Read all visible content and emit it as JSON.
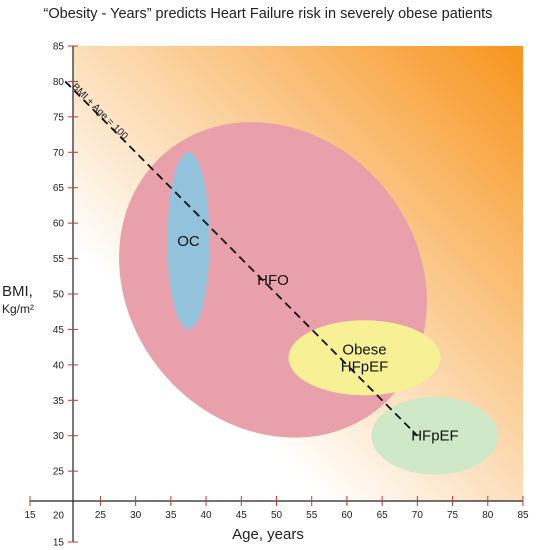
{
  "chart_data": {
    "type": "scatter",
    "title": "“Obesity - Years” predicts Heart Failure risk in severely obese patients",
    "xlabel": "Age, years",
    "ylabel": "BMI,",
    "ylabel_unit": "Kg/m²",
    "xlim": [
      15,
      85
    ],
    "ylim": [
      15,
      85
    ],
    "x_ticks": [
      15,
      20,
      25,
      30,
      35,
      40,
      45,
      50,
      55,
      60,
      65,
      70,
      75,
      80,
      85
    ],
    "y_ticks": [
      15,
      20,
      25,
      30,
      35,
      40,
      45,
      50,
      55,
      60,
      65,
      70,
      75,
      80,
      85
    ],
    "grid": false,
    "background_gradient": {
      "from": "#ffffff",
      "to": "#f7941d",
      "direction": "bottom-left to top-right"
    },
    "reference_line": {
      "label": "BMI + Age = 100",
      "x": [
        20,
        70
      ],
      "y": [
        80,
        30
      ],
      "style": "dashed"
    },
    "regions": [
      {
        "label": "HFO",
        "center_x": 49.5,
        "center_y": 52,
        "rx": 20.5,
        "ry": 23.5,
        "rotation_deg": -40,
        "color": "#e8a0aa"
      },
      {
        "label": "OC",
        "center_x": 37.5,
        "center_y": 57.5,
        "rx": 3,
        "ry": 12.5,
        "rotation_deg": 0,
        "color": "#93c2dc"
      },
      {
        "label": "Obese HFpEF",
        "label_lines": [
          "Obese",
          "HFpEF"
        ],
        "center_x": 62.5,
        "center_y": 41,
        "rx": 10.8,
        "ry": 5.3,
        "rotation_deg": 0,
        "color": "#f7f095"
      },
      {
        "label": "HFpEF",
        "center_x": 72.5,
        "center_y": 30,
        "rx": 9,
        "ry": 5.5,
        "rotation_deg": 0,
        "color": "#cfe8c8"
      }
    ]
  }
}
